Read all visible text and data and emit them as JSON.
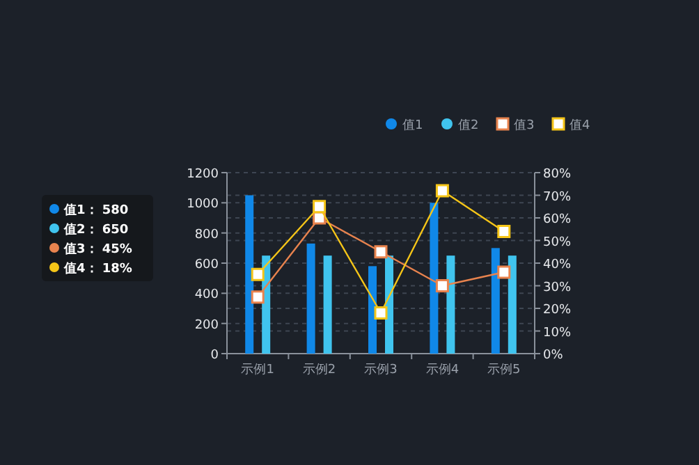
{
  "chart_data": {
    "type": "bar",
    "categories": [
      "示例1",
      "示例2",
      "示例3",
      "示例4",
      "示例5"
    ],
    "series": [
      {
        "name": "值1",
        "color": "#1088e8",
        "values": [
          1050,
          730,
          580,
          1000,
          700
        ]
      },
      {
        "name": "值2",
        "color": "#40c4ee",
        "values": [
          650,
          650,
          650,
          650,
          650
        ]
      },
      {
        "name": "值3",
        "type": "line",
        "axis": "y2",
        "color": "#e8834e",
        "values": [
          25,
          60,
          45,
          30,
          36
        ]
      },
      {
        "name": "值4",
        "type": "line",
        "axis": "y2",
        "color": "#f5c518",
        "values": [
          35,
          65,
          18,
          72,
          54
        ]
      }
    ],
    "ylim": [
      0,
      1200
    ],
    "yticks": [
      0,
      200,
      400,
      600,
      800,
      1000,
      1200
    ],
    "y2lim": [
      0,
      80
    ],
    "y2ticks": [
      {
        "value": 0,
        "label": "0%"
      },
      {
        "value": 10,
        "label": "10%"
      },
      {
        "value": 20,
        "label": "20%"
      },
      {
        "value": 30,
        "label": "30%"
      },
      {
        "value": 40,
        "label": "40%"
      },
      {
        "value": 50,
        "label": "50%"
      },
      {
        "value": 60,
        "label": "60%"
      },
      {
        "value": 70,
        "label": "70%"
      },
      {
        "value": 80,
        "label": "80%"
      }
    ],
    "grid": "y",
    "legend": "top right",
    "marker": "square",
    "line_style": "solid",
    "annotations": [
      "值1：  580",
      "值2：  650",
      "值3：  45%",
      "值4：  18%"
    ]
  }
}
